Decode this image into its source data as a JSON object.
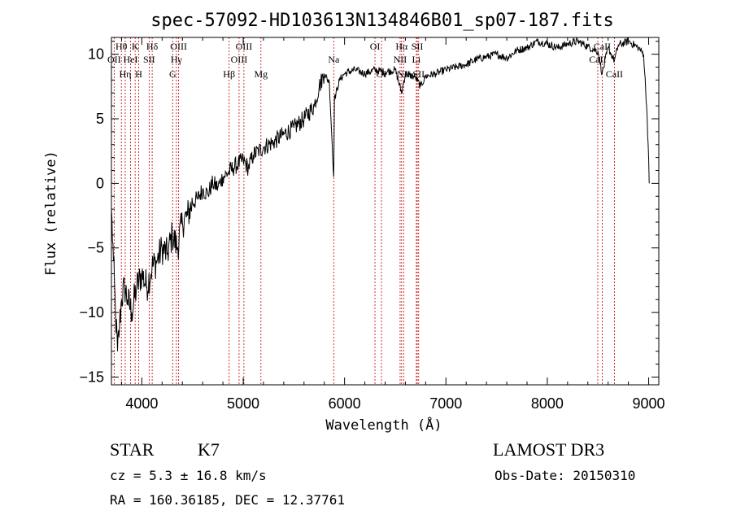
{
  "chart_data": {
    "type": "line",
    "title": "spec-57092-HD103613N134846B01_sp07-187.fits",
    "xlabel": "Wavelength (Å)",
    "ylabel": "Flux (relative)",
    "xlim": [
      3700,
      9100
    ],
    "ylim": [
      -15.6,
      11.3
    ],
    "x_ticks": [
      4000,
      5000,
      6000,
      7000,
      8000,
      9000
    ],
    "y_ticks": [
      -15,
      -10,
      -5,
      0,
      5,
      10
    ],
    "x_tick_labels": [
      "4000",
      "5000",
      "6000",
      "7000",
      "8000",
      "9000"
    ],
    "y_tick_labels": [
      "−15",
      "−10",
      "−5",
      "0",
      "5",
      "10"
    ],
    "series": [
      {
        "points": [
          [
            3700,
            -2
          ],
          [
            3720,
            -6
          ],
          [
            3740,
            -10
          ],
          [
            3760,
            -13
          ],
          [
            3780,
            -11
          ],
          [
            3800,
            -9
          ],
          [
            3830,
            -8
          ],
          [
            3860,
            -9
          ],
          [
            3900,
            -10
          ],
          [
            3950,
            -8
          ],
          [
            4000,
            -7
          ],
          [
            4050,
            -8
          ],
          [
            4100,
            -6.5
          ],
          [
            4150,
            -6
          ],
          [
            4200,
            -5
          ],
          [
            4250,
            -5.5
          ],
          [
            4300,
            -4
          ],
          [
            4350,
            -5
          ],
          [
            4400,
            -3
          ],
          [
            4450,
            -2.5
          ],
          [
            4500,
            -1.5
          ],
          [
            4550,
            -1.2
          ],
          [
            4600,
            -0.5
          ],
          [
            4650,
            -0.8
          ],
          [
            4700,
            0
          ],
          [
            4750,
            -0.3
          ],
          [
            4800,
            0.5
          ],
          [
            4850,
            0.8
          ],
          [
            4900,
            1.2
          ],
          [
            4950,
            1.5
          ],
          [
            5000,
            1.8
          ],
          [
            5050,
            1.2
          ],
          [
            5100,
            2.2
          ],
          [
            5150,
            2.5
          ],
          [
            5200,
            2.8
          ],
          [
            5300,
            3.2
          ],
          [
            5400,
            3.8
          ],
          [
            5500,
            4.3
          ],
          [
            5600,
            5
          ],
          [
            5700,
            6
          ],
          [
            5750,
            7.5
          ],
          [
            5800,
            8.5
          ],
          [
            5850,
            7.8
          ],
          [
            5893,
            0.5
          ],
          [
            5900,
            6.5
          ],
          [
            5950,
            8
          ],
          [
            6000,
            8.5
          ],
          [
            6100,
            8.8
          ],
          [
            6200,
            8.5
          ],
          [
            6300,
            8.8
          ],
          [
            6400,
            8.6
          ],
          [
            6500,
            8.8
          ],
          [
            6563,
            7
          ],
          [
            6600,
            8.5
          ],
          [
            6700,
            8.2
          ],
          [
            6750,
            7.5
          ],
          [
            6800,
            8.3
          ],
          [
            6900,
            8.5
          ],
          [
            7000,
            8.8
          ],
          [
            7100,
            9
          ],
          [
            7200,
            9.2
          ],
          [
            7300,
            9.6
          ],
          [
            7400,
            9.8
          ],
          [
            7500,
            10
          ],
          [
            7600,
            9.7
          ],
          [
            7700,
            10.3
          ],
          [
            7800,
            10.5
          ],
          [
            7900,
            11
          ],
          [
            8000,
            10.8
          ],
          [
            8100,
            10.5
          ],
          [
            8200,
            10.8
          ],
          [
            8300,
            11
          ],
          [
            8400,
            10.6
          ],
          [
            8500,
            10.2
          ],
          [
            8542,
            8.5
          ],
          [
            8600,
            10.5
          ],
          [
            8662,
            9.5
          ],
          [
            8700,
            10.7
          ],
          [
            8800,
            11
          ],
          [
            8900,
            10.5
          ],
          [
            8950,
            10
          ],
          [
            8980,
            6
          ],
          [
            9000,
            2
          ],
          [
            9005,
            0
          ]
        ]
      }
    ],
    "lines": [
      {
        "name": "Hθ",
        "wavelength": 3798,
        "row": 1
      },
      {
        "name": "OII",
        "wavelength": 3727,
        "row": 2
      },
      {
        "name": "Hη",
        "wavelength": 3836,
        "row": 3
      },
      {
        "name": "K",
        "wavelength": 3934,
        "row": 1
      },
      {
        "name": "HeI",
        "wavelength": 3889,
        "row": 2
      },
      {
        "name": "H",
        "wavelength": 3969,
        "row": 3
      },
      {
        "name": "Hδ",
        "wavelength": 4102,
        "row": 1
      },
      {
        "name": "SII",
        "wavelength": 4072,
        "row": 2
      },
      {
        "name": "OIII",
        "wavelength": 4363,
        "row": 1
      },
      {
        "name": "Hγ",
        "wavelength": 4341,
        "row": 2
      },
      {
        "name": "G",
        "wavelength": 4304,
        "row": 3
      },
      {
        "name": "OIII",
        "wavelength": 5007,
        "row": 1
      },
      {
        "name": "OIII",
        "wavelength": 4959,
        "row": 2
      },
      {
        "name": "Hβ",
        "wavelength": 4861,
        "row": 3
      },
      {
        "name": "Mg",
        "wavelength": 5175,
        "row": 3
      },
      {
        "name": "Na",
        "wavelength": 5893,
        "row": 2
      },
      {
        "name": "OI",
        "wavelength": 6300,
        "row": 1
      },
      {
        "name": "OI",
        "wavelength": 6364,
        "row": 3
      },
      {
        "name": "Hα",
        "wavelength": 6563,
        "row": 1
      },
      {
        "name": "SII",
        "wavelength": 6717,
        "row": 1
      },
      {
        "name": "NII",
        "wavelength": 6548,
        "row": 2
      },
      {
        "name": "Li",
        "wavelength": 6708,
        "row": 2
      },
      {
        "name": "NII",
        "wavelength": 6583,
        "row": 3
      },
      {
        "name": "SII",
        "wavelength": 6731,
        "row": 3
      },
      {
        "name": "CaII",
        "wavelength": 8542,
        "row": 1
      },
      {
        "name": "CaII",
        "wavelength": 8498,
        "row": 2
      },
      {
        "name": "CaII",
        "wavelength": 8662,
        "row": 3
      }
    ],
    "grid": false,
    "line_marker_color": "#c00000",
    "spectrum_color": "#000000"
  },
  "info": {
    "class": "STAR",
    "subclass": "K7",
    "survey": "LAMOST DR3",
    "cz": "cz = 5.3 ± 16.8 km/s",
    "obs_date": "Obs-Date: 20150310",
    "coords": "RA = 160.36185, DEC =  12.37761"
  }
}
